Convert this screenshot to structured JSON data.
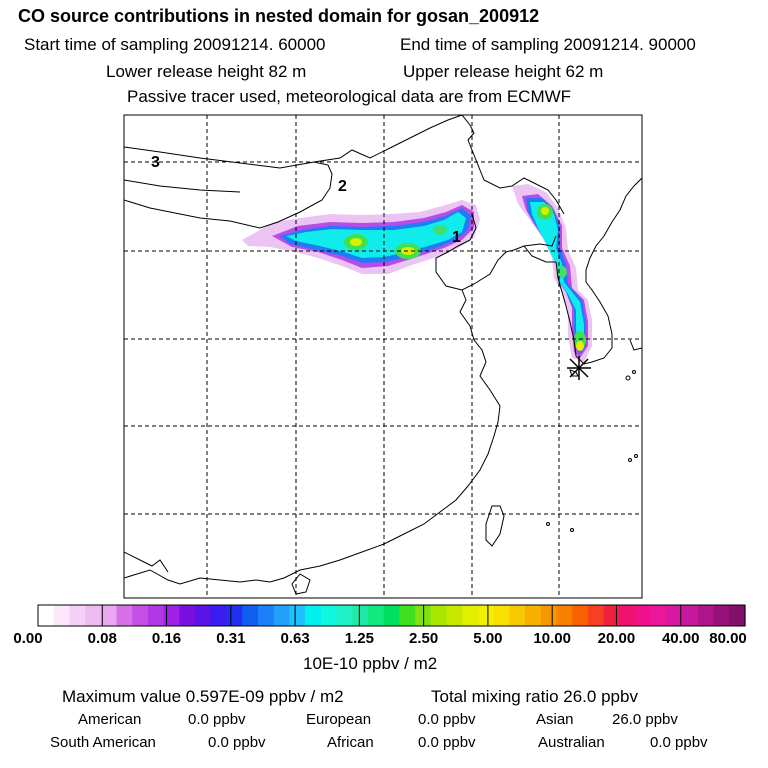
{
  "header": {
    "title": "CO  source contributions in nested domain for gosan_200912",
    "start_time": "Start time of sampling 20091214. 60000",
    "end_time": "End time of sampling 20091214. 90000",
    "lower_release": "Lower release height   82 m",
    "upper_release": "Upper release height   62 m",
    "tracer_note": "Passive tracer used, meteorological data are from ECMWF"
  },
  "map": {
    "labels": {
      "l1": "1",
      "l2": "2",
      "l3": "3"
    },
    "receptor_marker": "star-receptor"
  },
  "colorbar": {
    "colors": [
      "#ffffff",
      "#fbe8fb",
      "#f4d0f6",
      "#eebcf3",
      "#e9a8f0",
      "#d66fe8",
      "#c450e6",
      "#b238e6",
      "#a020e8",
      "#7a10e0",
      "#5a14e8",
      "#3a1cf0",
      "#2030f0",
      "#1060f0",
      "#1c80f8",
      "#22a0fb",
      "#20c0fc",
      "#00f0f0",
      "#10f8e0",
      "#20f0c8",
      "#20e8a8",
      "#10e880",
      "#00e060",
      "#40e020",
      "#80e010",
      "#a8e800",
      "#c8e800",
      "#e0f000",
      "#f0f000",
      "#f8e000",
      "#f8c800",
      "#f8b000",
      "#f89800",
      "#f88000",
      "#f86000",
      "#f84020",
      "#f02040",
      "#f01070",
      "#f0108c",
      "#e81898",
      "#d818a0",
      "#c818a0",
      "#b0148c",
      "#98107a",
      "#801068"
    ],
    "tick_labels": [
      "0.00",
      "0.08",
      "0.16",
      "0.31",
      "0.63",
      "1.25",
      "2.50",
      "5.00",
      "10.00",
      "20.00",
      "40.00",
      "80.00"
    ],
    "units": "10E-10 ppbv / m2"
  },
  "summary": {
    "max_value": "Maximum value  0.597E-09 ppbv / m2",
    "total_mixing": "Total mixing ratio       26.0 ppbv",
    "american_label": "American",
    "american_value": "0.0 ppbv",
    "european_label": "European",
    "european_value": "0.0 ppbv",
    "asian_label": "Asian",
    "asian_value": "26.0 ppbv",
    "south_american_label": "South American",
    "south_american_value": "0.0 ppbv",
    "african_label": "African",
    "african_value": "0.0 ppbv",
    "australian_label": "Australian",
    "australian_value": "0.0 ppbv"
  }
}
